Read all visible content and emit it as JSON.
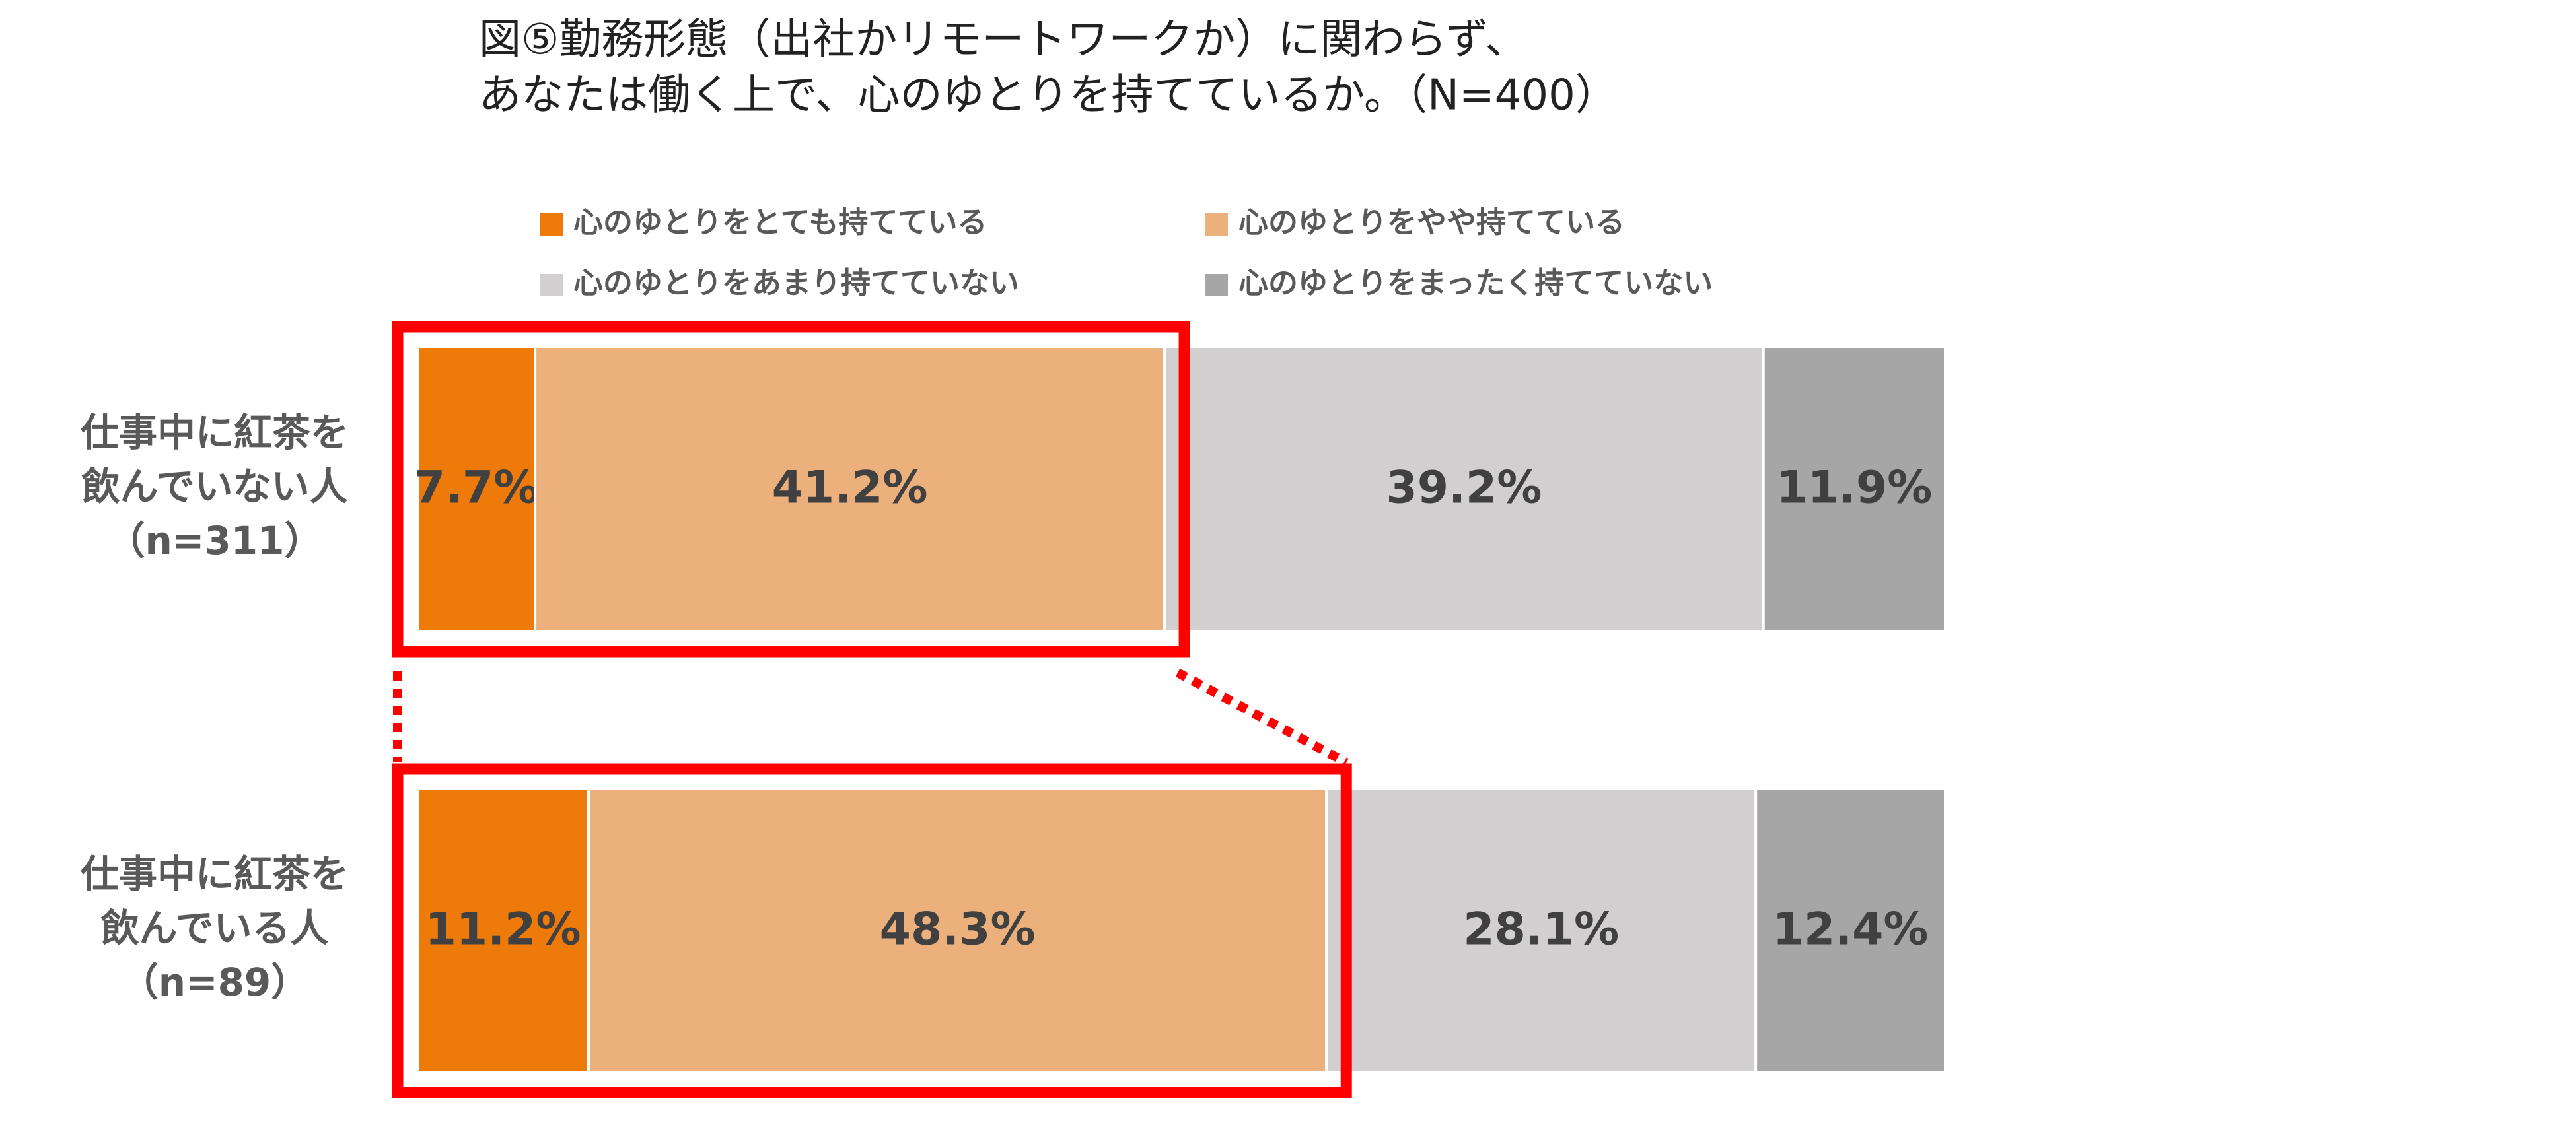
{
  "chart_data": {
    "type": "stacked_bar_horizontal",
    "title_lines": [
      "図⑤勤務形態（出社かリモートワークか）に関わらず、",
      "あなたは働く上で、心のゆとりを持てているか。（N=400）"
    ],
    "categories": [
      [
        "仕事中に紅茶を",
        "飲んでいない人",
        "（n=311）"
      ],
      [
        "仕事中に紅茶を",
        "飲んでいる人",
        "（n=89）"
      ]
    ],
    "series": [
      {
        "name": "心のゆとりをとても持てている",
        "color": "#EE7A0A",
        "values": [
          7.7,
          11.2
        ],
        "value_labels": [
          "7.7%",
          "11.2%"
        ]
      },
      {
        "name": "心のゆとりをやや持てている",
        "color": "#EBB07B",
        "values": [
          41.2,
          48.3
        ],
        "value_labels": [
          "41.2%",
          "48.3%"
        ]
      },
      {
        "name": "心のゆとりをあまり持てていない",
        "color": "#D1CFD0",
        "values": [
          39.2,
          28.1
        ],
        "value_labels": [
          "39.2%",
          "28.1%"
        ]
      },
      {
        "name": "心のゆとりをまったく持てていない",
        "color": "#A6A6A6",
        "values": [
          11.9,
          12.4
        ],
        "value_labels": [
          "11.9%",
          "12.4%"
        ]
      }
    ],
    "highlight_color": "#FF0000"
  }
}
